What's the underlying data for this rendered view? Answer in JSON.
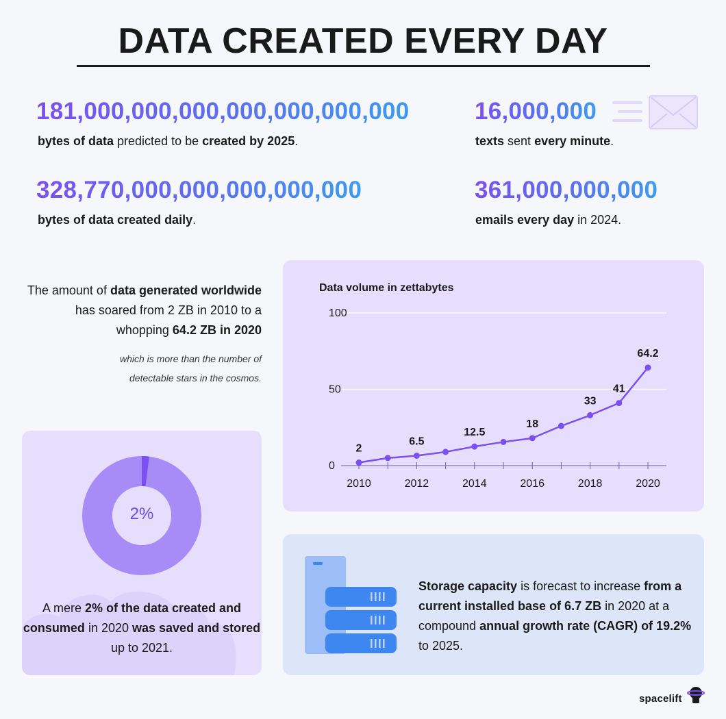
{
  "title": "DATA CREATED EVERY DAY",
  "stats": {
    "bytes_2025": {
      "value": "181,000,000,000,000,000,000,000",
      "label_b1": "bytes of data",
      "label_t1": " predicted to be ",
      "label_b2": "created by 2025",
      "label_t2": "."
    },
    "bytes_daily": {
      "value": "328,770,000,000,000,000,000",
      "label_b1": "bytes of data created daily",
      "label_t1": "."
    },
    "texts": {
      "value": "16,000,000",
      "label_b1": "texts",
      "label_t1": " sent ",
      "label_b2": "every minute",
      "label_t2": "."
    },
    "emails": {
      "value": "361,000,000,000",
      "label_b1": "emails every day",
      "label_t1": " in 2024."
    }
  },
  "intro": {
    "t1": "The amount of ",
    "b1": "data generated worldwide",
    "t2": " has soared from 2 ZB in 2010 to a whopping ",
    "b2": "64.2 ZB in 2020",
    "note": "which is more than the number of detectable stars in the cosmos."
  },
  "chart_data": {
    "type": "line",
    "title": "Data volume in zettabytes",
    "x": [
      2010,
      2011,
      2012,
      2013,
      2014,
      2015,
      2016,
      2017,
      2018,
      2019,
      2020
    ],
    "values": [
      2,
      5,
      6.5,
      9,
      12.5,
      15.5,
      18,
      26,
      33,
      41,
      64.2
    ],
    "point_labels": [
      "2",
      "",
      "6.5",
      "",
      "12.5",
      "",
      "18",
      "",
      "33",
      "41",
      "64.2"
    ],
    "x_ticks": [
      "2010",
      "2012",
      "2014",
      "2016",
      "2018",
      "2020"
    ],
    "y_ticks": [
      "0",
      "50",
      "100"
    ],
    "ylim": [
      0,
      100
    ],
    "line_color": "#7b4ff0",
    "grid": true
  },
  "donut": {
    "center_label": "2%",
    "value_percent": 2,
    "main_color": "#a78bf6",
    "slice_color": "#7b4ff0",
    "t1": "A mere ",
    "b1": "2% of the data created and consumed",
    "t2": " in 2020 ",
    "b2": "was saved and stored",
    "t3": " up to 2021."
  },
  "storage": {
    "b1": "Storage capacity",
    "t1": " is forecast to increase ",
    "b2": "from a current installed base of 6.7 ZB",
    "t2": " in 2020 at a compound ",
    "b3": "annual growth rate (CAGR) of 19.2%",
    "t3": " to 2025."
  },
  "icons": {
    "envelope": "envelope-icon",
    "server": "server-stack-icon",
    "logo": "astronaut-logo-icon"
  },
  "brand": "spacelift"
}
